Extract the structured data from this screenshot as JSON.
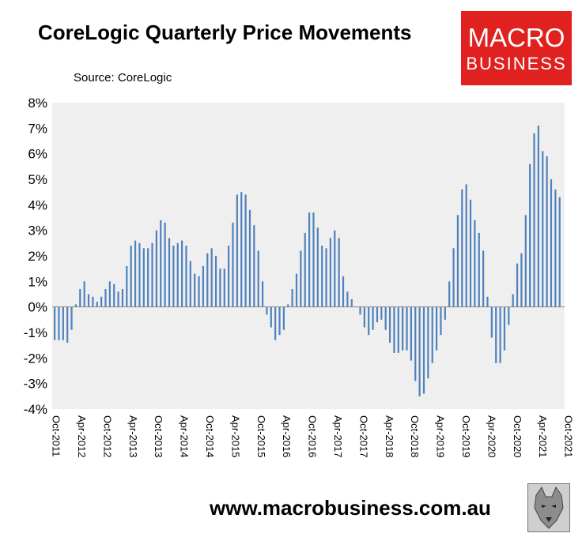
{
  "header": {
    "title": "CoreLogic Quarterly Price Movements",
    "source": "Source: CoreLogic"
  },
  "logo": {
    "line1": "MACRO",
    "line2": "BUSINESS",
    "bg_color": "#e0211f"
  },
  "footer": {
    "url": "www.macrobusiness.com.au",
    "emblem": "wolf-emblem-icon"
  },
  "chart_data": {
    "type": "bar",
    "bar_color": "#4f81bd",
    "plot_background": "#efefef",
    "ylim": [
      -4,
      8
    ],
    "y_ticks": [
      "8%",
      "7%",
      "6%",
      "5%",
      "4%",
      "3%",
      "2%",
      "1%",
      "0%",
      "-1%",
      "-2%",
      "-3%",
      "-4%"
    ],
    "x_tick_labels": [
      "Oct-2011",
      "Apr-2012",
      "Oct-2012",
      "Apr-2013",
      "Oct-2013",
      "Apr-2014",
      "Oct-2014",
      "Apr-2015",
      "Oct-2015",
      "Apr-2016",
      "Oct-2016",
      "Apr-2017",
      "Oct-2017",
      "Apr-2018",
      "Oct-2018",
      "Apr-2019",
      "Oct-2019",
      "Apr-2020",
      "Oct-2020",
      "Apr-2021",
      "Oct-2021"
    ],
    "x_label_interval_months": 6,
    "x_start": "Oct-2011",
    "x_end": "Oct-2021",
    "grid": false,
    "legend": "none",
    "values": [
      -1.3,
      -1.3,
      -1.3,
      -1.4,
      -0.9,
      0.1,
      0.7,
      1.0,
      0.5,
      0.4,
      0.2,
      0.4,
      0.7,
      1.0,
      0.9,
      0.6,
      0.7,
      1.6,
      2.4,
      2.6,
      2.5,
      2.3,
      2.3,
      2.5,
      3.0,
      3.4,
      3.3,
      2.7,
      2.4,
      2.5,
      2.6,
      2.4,
      1.8,
      1.3,
      1.2,
      1.6,
      2.1,
      2.3,
      2.0,
      1.5,
      1.5,
      2.4,
      3.3,
      4.4,
      4.5,
      4.4,
      3.8,
      3.2,
      2.2,
      1.0,
      -0.3,
      -0.8,
      -1.3,
      -1.1,
      -0.9,
      0.1,
      0.7,
      1.3,
      2.2,
      2.9,
      3.7,
      3.7,
      3.1,
      2.4,
      2.3,
      2.7,
      3.0,
      2.7,
      1.2,
      0.6,
      0.3,
      0.0,
      -0.3,
      -0.8,
      -1.1,
      -0.9,
      -0.6,
      -0.5,
      -0.9,
      -1.4,
      -1.8,
      -1.8,
      -1.7,
      -1.7,
      -2.1,
      -2.9,
      -3.5,
      -3.4,
      -2.8,
      -2.2,
      -1.7,
      -1.1,
      -0.5,
      1.0,
      2.3,
      3.6,
      4.6,
      4.8,
      4.2,
      3.4,
      2.9,
      2.2,
      0.4,
      -1.2,
      -2.2,
      -2.2,
      -1.7,
      -0.7,
      0.5,
      1.7,
      2.1,
      3.6,
      5.6,
      6.8,
      7.1,
      6.1,
      5.9,
      5.0,
      4.6,
      4.3
    ]
  }
}
